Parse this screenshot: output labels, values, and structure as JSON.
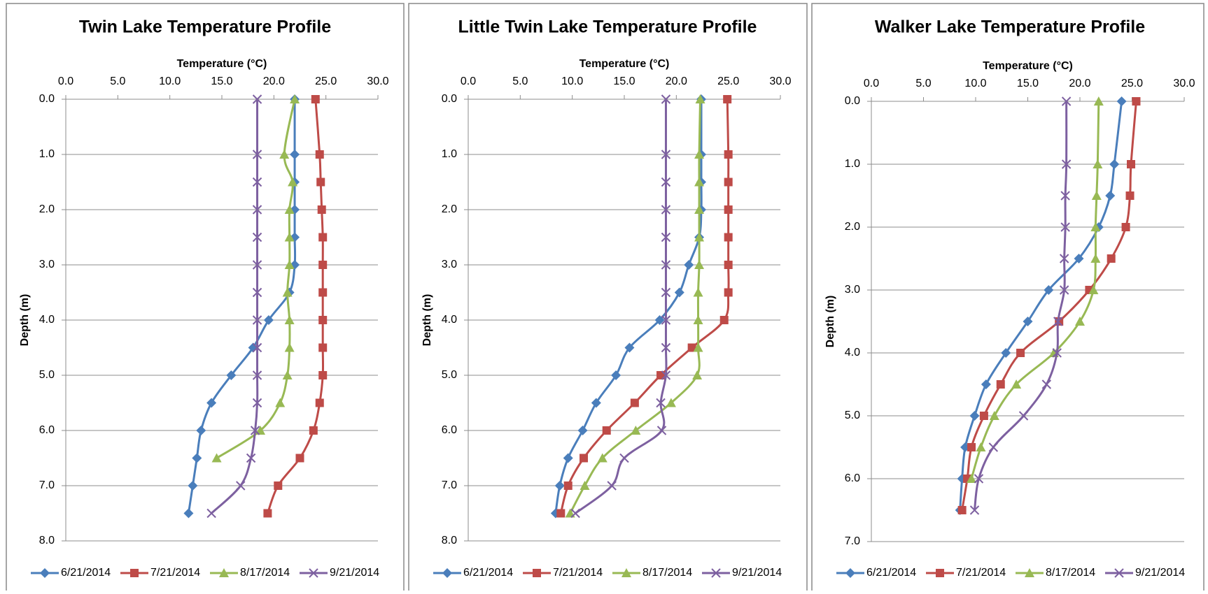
{
  "chart_data": [
    {
      "type": "line",
      "title": "Twin Lake Temperature Profile",
      "xlabel": "Temperature (°C)",
      "ylabel": "Depth (m)",
      "xlim": [
        0,
        30
      ],
      "xticks": [
        {
          "value": 0,
          "label": "0.0"
        },
        {
          "value": 5,
          "label": "5.0"
        },
        {
          "value": 10,
          "label": "10.0"
        },
        {
          "value": 15,
          "label": "15.0"
        },
        {
          "value": 20,
          "label": "20.0"
        },
        {
          "value": 25,
          "label": "25.0"
        },
        {
          "value": 30,
          "label": "30.0"
        }
      ],
      "ylim": [
        0,
        8
      ],
      "yticks": [
        {
          "value": 0,
          "label": "0.0"
        },
        {
          "value": 1,
          "label": "1.0"
        },
        {
          "value": 2,
          "label": "2.0"
        },
        {
          "value": 3,
          "label": "3.0"
        },
        {
          "value": 4,
          "label": "4.0"
        },
        {
          "value": 5,
          "label": "5.0"
        },
        {
          "value": 6,
          "label": "6.0"
        },
        {
          "value": 7,
          "label": "7.0"
        },
        {
          "value": 8,
          "label": "8.0"
        }
      ],
      "y_inverted": true,
      "x_axis_position": "top",
      "grid": true,
      "legend": "bottom",
      "y": [
        0,
        1,
        1.5,
        2,
        2.5,
        3,
        3.5,
        4,
        4.5,
        5,
        5.5,
        6,
        6.5,
        7,
        7.5
      ],
      "series": [
        {
          "name": "6/21/2014",
          "color": "#4a7ebb",
          "marker": "diamond",
          "values": [
            22.0,
            22.0,
            22.0,
            22.0,
            22.0,
            22.0,
            21.5,
            19.5,
            18.0,
            15.9,
            14.0,
            13.0,
            12.6,
            12.2,
            11.8
          ]
        },
        {
          "name": "7/21/2014",
          "color": "#be4b48",
          "marker": "square",
          "values": [
            24.0,
            24.4,
            24.5,
            24.6,
            24.7,
            24.7,
            24.7,
            24.7,
            24.7,
            24.7,
            24.4,
            23.8,
            22.5,
            20.4,
            19.4
          ]
        },
        {
          "name": "8/17/2014",
          "color": "#98b954",
          "marker": "triangle",
          "values": [
            22.0,
            21.0,
            21.8,
            21.5,
            21.5,
            21.5,
            21.3,
            21.5,
            21.5,
            21.3,
            20.6,
            18.7,
            14.5,
            null,
            null
          ]
        },
        {
          "name": "9/21/2014",
          "color": "#7d60a0",
          "marker": "x",
          "values": [
            18.4,
            18.4,
            18.4,
            18.4,
            18.4,
            18.4,
            18.4,
            18.4,
            18.4,
            18.4,
            18.4,
            18.2,
            17.8,
            16.8,
            14.0
          ]
        }
      ]
    },
    {
      "type": "line",
      "title": "Little Twin Lake Temperature Profile",
      "xlabel": "Temperature (°C)",
      "ylabel": "Depth (m)",
      "xlim": [
        0,
        30
      ],
      "xticks": [
        {
          "value": 0,
          "label": "0.0"
        },
        {
          "value": 5,
          "label": "5.0"
        },
        {
          "value": 10,
          "label": "10.0"
        },
        {
          "value": 15,
          "label": "15.0"
        },
        {
          "value": 20,
          "label": "20.0"
        },
        {
          "value": 25,
          "label": "25.0"
        },
        {
          "value": 30,
          "label": "30.0"
        }
      ],
      "ylim": [
        0,
        8
      ],
      "yticks": [
        {
          "value": 0,
          "label": "0.0"
        },
        {
          "value": 1,
          "label": "1.0"
        },
        {
          "value": 2,
          "label": "2.0"
        },
        {
          "value": 3,
          "label": "3.0"
        },
        {
          "value": 4,
          "label": "4.0"
        },
        {
          "value": 5,
          "label": "5.0"
        },
        {
          "value": 6,
          "label": "6.0"
        },
        {
          "value": 7,
          "label": "7.0"
        },
        {
          "value": 8,
          "label": "8.0"
        }
      ],
      "y_inverted": true,
      "x_axis_position": "top",
      "grid": true,
      "legend": "bottom",
      "y": [
        0,
        1,
        1.5,
        2,
        2.5,
        3,
        3.5,
        4,
        4.5,
        5,
        5.5,
        6,
        6.5,
        7,
        7.5
      ],
      "series": [
        {
          "name": "6/21/2014",
          "color": "#4a7ebb",
          "marker": "diamond",
          "values": [
            22.4,
            22.4,
            22.4,
            22.4,
            22.2,
            21.2,
            20.3,
            18.4,
            15.5,
            14.2,
            12.3,
            11.0,
            9.6,
            8.8,
            8.4
          ]
        },
        {
          "name": "7/21/2014",
          "color": "#be4b48",
          "marker": "square",
          "values": [
            24.9,
            25.0,
            25.0,
            25.0,
            25.0,
            25.0,
            25.0,
            24.6,
            21.5,
            18.5,
            16.0,
            13.3,
            11.1,
            9.6,
            8.9
          ]
        },
        {
          "name": "8/17/2014",
          "color": "#98b954",
          "marker": "triangle",
          "values": [
            22.3,
            22.2,
            22.2,
            22.2,
            22.2,
            22.2,
            22.1,
            22.1,
            22.1,
            22.0,
            19.5,
            16.1,
            12.9,
            11.2,
            9.8
          ]
        },
        {
          "name": "9/21/2014",
          "color": "#7d60a0",
          "marker": "x",
          "values": [
            19.0,
            19.0,
            19.0,
            19.0,
            19.0,
            19.0,
            19.0,
            19.0,
            19.0,
            19.0,
            18.5,
            18.6,
            15.0,
            13.8,
            10.3
          ]
        }
      ]
    },
    {
      "type": "line",
      "title": "Walker Lake Temperature Profile",
      "xlabel": "Temperature (°C)",
      "ylabel": "Depth (m)",
      "xlim": [
        0,
        30
      ],
      "xticks": [
        {
          "value": 0,
          "label": "0.0"
        },
        {
          "value": 5,
          "label": "5.0"
        },
        {
          "value": 10,
          "label": "10.0"
        },
        {
          "value": 15,
          "label": "15.0"
        },
        {
          "value": 20,
          "label": "20.0"
        },
        {
          "value": 25,
          "label": "25.0"
        },
        {
          "value": 30,
          "label": "30.0"
        }
      ],
      "ylim": [
        0,
        7
      ],
      "yticks": [
        {
          "value": 0,
          "label": "0.0"
        },
        {
          "value": 1,
          "label": "1.0"
        },
        {
          "value": 2,
          "label": "2.0"
        },
        {
          "value": 3,
          "label": "3.0"
        },
        {
          "value": 4,
          "label": "4.0"
        },
        {
          "value": 5,
          "label": "5.0"
        },
        {
          "value": 6,
          "label": "6.0"
        },
        {
          "value": 7,
          "label": "7.0"
        }
      ],
      "y_inverted": true,
      "x_axis_position": "top",
      "grid": true,
      "legend": "bottom",
      "y": [
        0,
        1,
        1.5,
        2,
        2.5,
        3,
        3.5,
        4,
        4.5,
        5,
        5.5,
        6,
        6.5
      ],
      "series": [
        {
          "name": "6/21/2014",
          "color": "#4a7ebb",
          "marker": "diamond",
          "values": [
            24.0,
            23.3,
            22.9,
            21.8,
            19.9,
            17.0,
            15.0,
            12.9,
            11.0,
            9.9,
            9.0,
            8.7,
            8.5
          ]
        },
        {
          "name": "7/21/2014",
          "color": "#be4b48",
          "marker": "square",
          "values": [
            25.4,
            24.9,
            24.8,
            24.4,
            23.0,
            20.9,
            18.0,
            14.3,
            12.4,
            10.8,
            9.6,
            9.2,
            8.7
          ]
        },
        {
          "name": "8/17/2014",
          "color": "#98b954",
          "marker": "triangle",
          "values": [
            21.8,
            21.7,
            21.6,
            21.5,
            21.5,
            21.3,
            20.0,
            17.5,
            13.9,
            11.8,
            10.5,
            9.6,
            null
          ]
        },
        {
          "name": "9/21/2014",
          "color": "#7d60a0",
          "marker": "x",
          "values": [
            18.7,
            18.7,
            18.6,
            18.6,
            18.5,
            18.5,
            17.9,
            17.8,
            16.8,
            14.6,
            11.7,
            10.3,
            9.9
          ]
        }
      ]
    }
  ]
}
